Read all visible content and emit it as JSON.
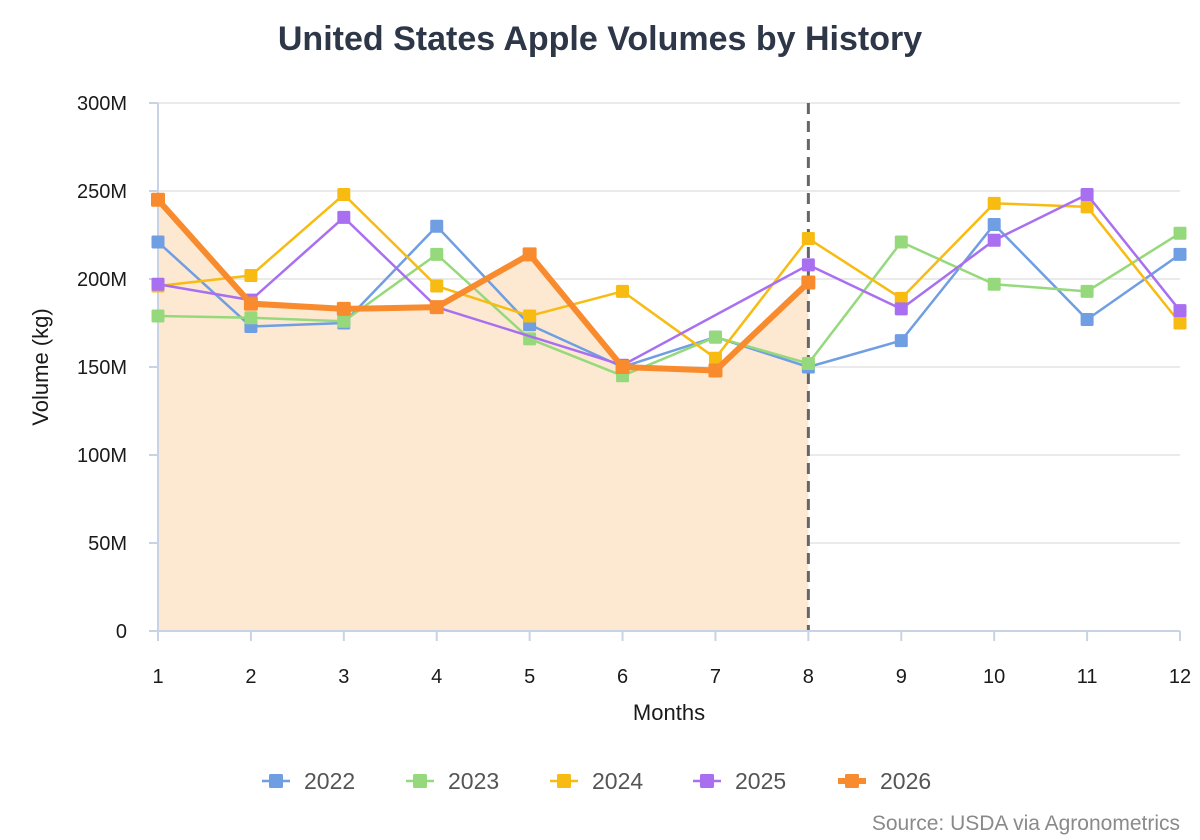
{
  "chart_data": {
    "type": "line",
    "title": "United States Apple Volumes by History",
    "xlabel": "Months",
    "ylabel": "Volume (kg)",
    "x": [
      1,
      2,
      3,
      4,
      5,
      6,
      7,
      8,
      9,
      10,
      11,
      12
    ],
    "x_tick_labels": [
      "1",
      "2",
      "3",
      "4",
      "5",
      "6",
      "7",
      "8",
      "9",
      "10",
      "11",
      "12"
    ],
    "ylim": [
      0,
      300000000
    ],
    "y_tick_values": [
      0,
      50000000,
      100000000,
      150000000,
      200000000,
      250000000,
      300000000
    ],
    "y_tick_labels": [
      "0",
      "50M",
      "100M",
      "150M",
      "200M",
      "250M",
      "300M"
    ],
    "grid": "horizontal",
    "legend_position": "bottom",
    "current_month_marker": 8,
    "shaded_series": "2026",
    "series": [
      {
        "name": "2022",
        "color": "#6f9ee3",
        "values": [
          221000000,
          173000000,
          175000000,
          230000000,
          174000000,
          150000000,
          167000000,
          150000000,
          165000000,
          231000000,
          177000000,
          214000000
        ]
      },
      {
        "name": "2023",
        "color": "#96d97c",
        "values": [
          179000000,
          178000000,
          176000000,
          214000000,
          166000000,
          145000000,
          167000000,
          152000000,
          221000000,
          197000000,
          193000000,
          226000000
        ]
      },
      {
        "name": "2024",
        "color": "#f7bb12",
        "values": [
          196000000,
          202000000,
          248000000,
          196000000,
          179000000,
          193000000,
          155000000,
          223000000,
          189000000,
          243000000,
          241000000,
          175000000
        ]
      },
      {
        "name": "2025",
        "color": "#a86ff0",
        "values": [
          197000000,
          188000000,
          235000000,
          184000000,
          null,
          151000000,
          null,
          208000000,
          183000000,
          222000000,
          248000000,
          182000000
        ]
      },
      {
        "name": "2026",
        "color": "#f98b2f",
        "values": [
          245000000,
          186000000,
          183000000,
          184000000,
          214000000,
          150000000,
          148000000,
          198000000,
          null,
          null,
          null,
          null
        ]
      }
    ],
    "source": "Source: USDA via Agronometrics"
  }
}
